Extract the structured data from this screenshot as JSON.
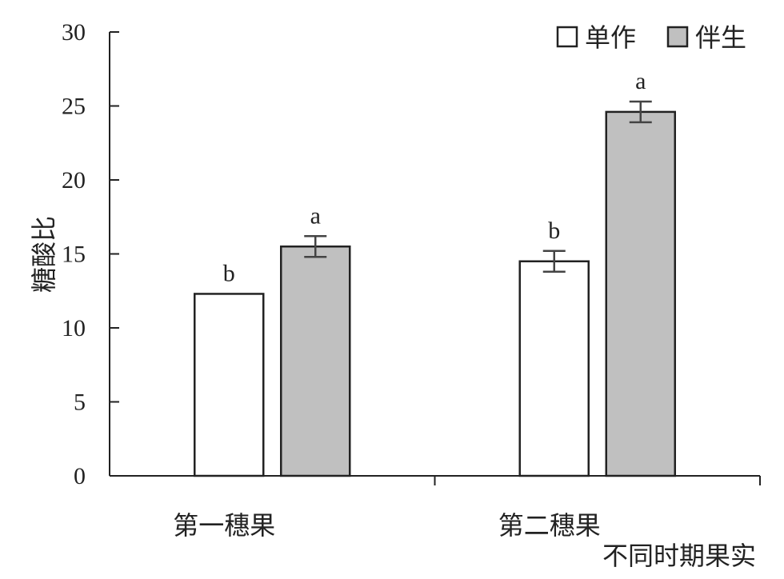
{
  "chart_data": {
    "type": "bar",
    "title": "",
    "xlabel": "不同时期果实",
    "ylabel": "糖酸比",
    "ylim": [
      0,
      30
    ],
    "yticks": [
      0,
      5,
      10,
      15,
      20,
      25,
      30
    ],
    "grid": false,
    "legend_position": "top-right",
    "categories": [
      "第一穗果",
      "第二穗果"
    ],
    "series": [
      {
        "name": "单作",
        "color": "#ffffff",
        "values": [
          12.3,
          14.5
        ],
        "errors": [
          0.0,
          0.7
        ],
        "labels": [
          "b",
          "b"
        ]
      },
      {
        "name": "伴生",
        "color": "#c0c0c0",
        "values": [
          15.5,
          24.6
        ],
        "errors": [
          0.7,
          0.7
        ],
        "labels": [
          "a",
          "a"
        ]
      }
    ]
  }
}
